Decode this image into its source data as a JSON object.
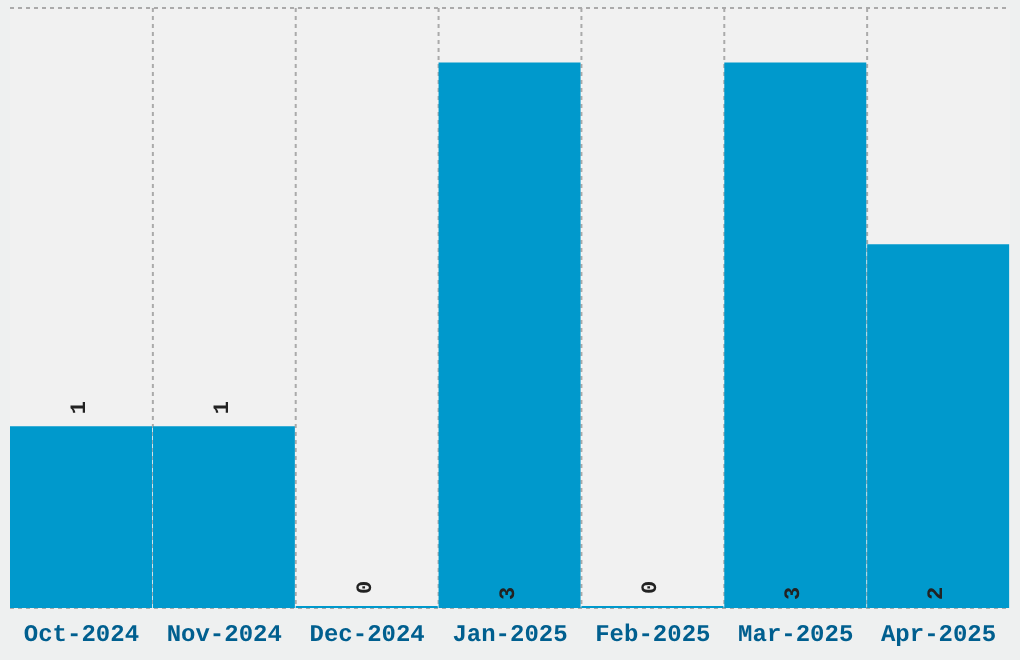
{
  "chart_data": {
    "type": "bar",
    "categories": [
      "Oct-2024",
      "Nov-2024",
      "Dec-2024",
      "Jan-2025",
      "Feb-2025",
      "Mar-2025",
      "Apr-2025"
    ],
    "values": [
      1,
      1,
      0,
      3,
      0,
      3,
      2
    ],
    "color": "#0099cc",
    "data_labels": true,
    "grid": true,
    "tick_labels": "x",
    "legend": false
  }
}
